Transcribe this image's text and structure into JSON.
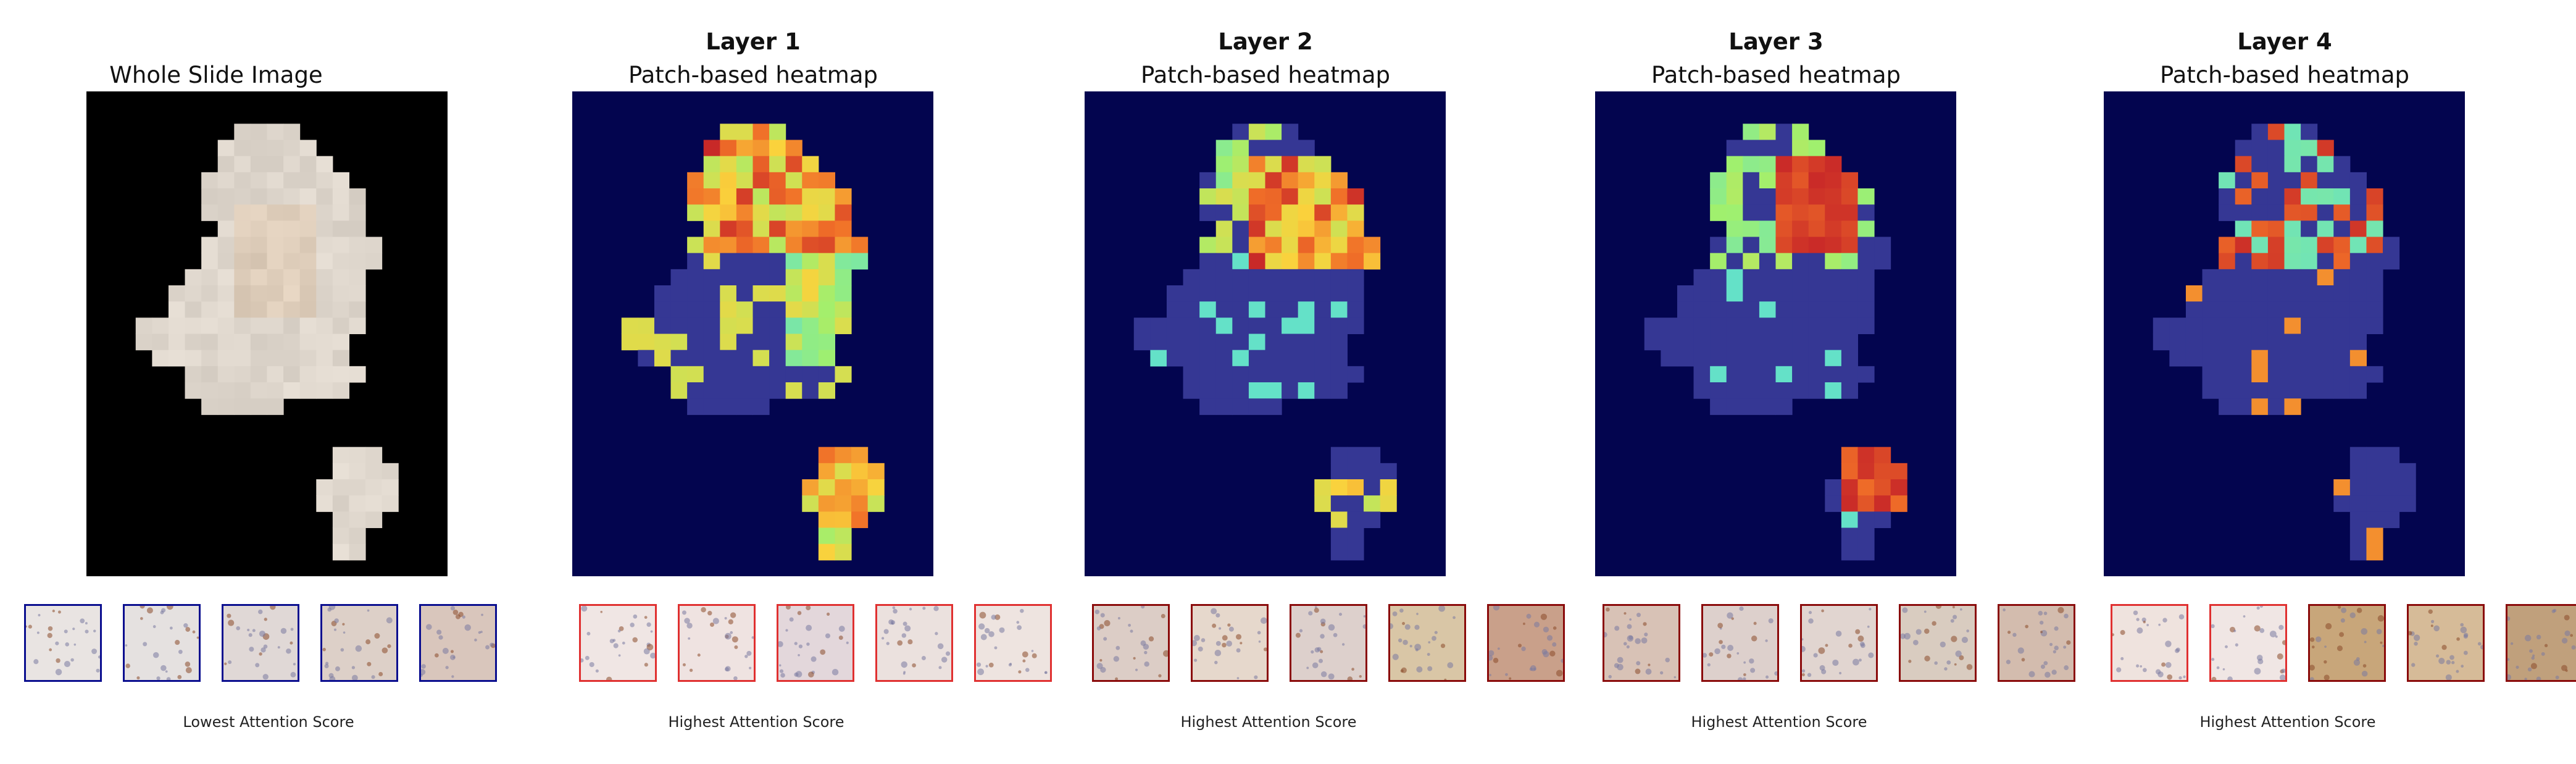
{
  "colors": {
    "background_wsi": "#000000",
    "background_heatmap": "#03054f",
    "tissue": "#dcd2c8",
    "low_attention_border": "#0a0e8f",
    "high_attention_border_red": "#e03030",
    "high_attention_border_dark": "#8a0a0a"
  },
  "panels": [
    {
      "id": "wsi",
      "layer_title": "",
      "subtitle": "Whole Slide Image",
      "caption": "Lowest Attention Score",
      "thumb_border": "#0a0e8f",
      "thumb_tones": [
        "#e9e4e2",
        "#e5e1e0",
        "#e0d8d6",
        "#ddd0c8",
        "#d9c6bc"
      ]
    },
    {
      "id": "layer1",
      "layer_title": "Layer 1",
      "subtitle": "Patch-based heatmap",
      "caption": "Highest Attention Score",
      "thumb_border": "#e03030",
      "thumb_tones": [
        "#f0e6e4",
        "#efe3e1",
        "#e3d7db",
        "#ebe1de",
        "#eee4e0"
      ]
    },
    {
      "id": "layer2",
      "layer_title": "Layer 2",
      "subtitle": "Patch-based heatmap",
      "caption": "Highest Attention Score",
      "thumb_border": "#8a0a0a",
      "thumb_tones": [
        "#dccdc6",
        "#e6d8cc",
        "#ddd0cc",
        "#d9c6a6",
        "#c9a08a"
      ]
    },
    {
      "id": "layer3",
      "layer_title": "Layer 3",
      "subtitle": "Patch-based heatmap",
      "caption": "Highest Attention Score",
      "thumb_border": "#8a0a0a",
      "thumb_tones": [
        "#d8c2b6",
        "#ddd0cc",
        "#e1d5d0",
        "#d9ccc0",
        "#d3bcae"
      ]
    },
    {
      "id": "layer4",
      "layer_title": "Layer 4",
      "subtitle": "Patch-based heatmap",
      "caption": "Highest Attention Score",
      "thumb_border": "#8a0a0a",
      "thumb_tones": [
        "#efe3de",
        "#f0e6e4",
        "#c8a67a",
        "#d6bb98",
        "#c0a07c"
      ]
    }
  ]
}
